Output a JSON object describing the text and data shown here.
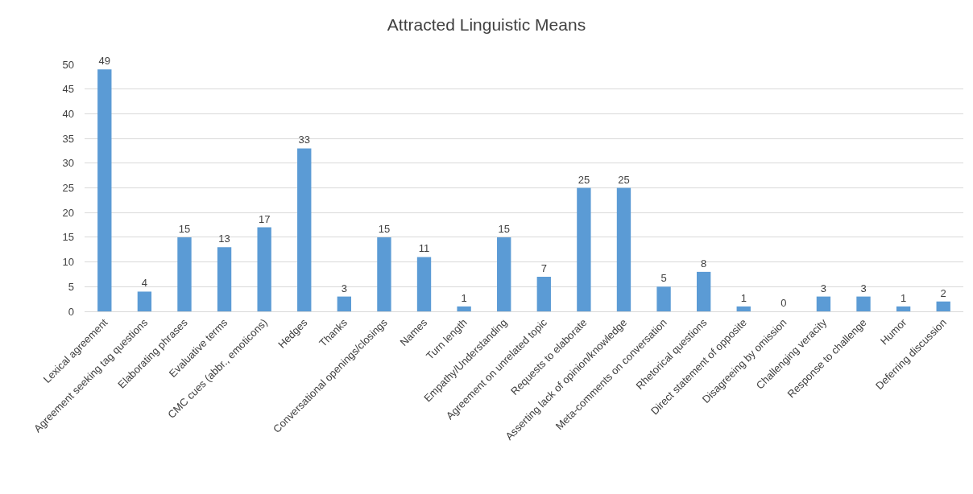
{
  "chart_data": {
    "type": "bar",
    "title": "Attracted Linguistic Means",
    "categories": [
      "Lexical agreement",
      "Agreement seeking tag questions",
      "Elaborating phrases",
      "Evaluative terms",
      "CMC cues (abbr., emoticons)",
      "Hedges",
      "Thanks",
      "Conversational openings/closings",
      "Names",
      "Turn length",
      "Empathy/Understanding",
      "Agreement on unrelated topic",
      "Requests to elaborate",
      "Asserting lack of opinion/knowledge",
      "Meta-comments on conversation",
      "Rhetorical questions",
      "Direct statement of opposite",
      "Disagreeing by omission",
      "Challenging veracity",
      "Response to challenge",
      "Humor",
      "Deferring discussion"
    ],
    "values": [
      49,
      4,
      15,
      13,
      17,
      33,
      3,
      15,
      11,
      1,
      15,
      7,
      25,
      25,
      5,
      8,
      1,
      0,
      3,
      3,
      1,
      2
    ],
    "color": "#5b9bd5",
    "ylim": [
      0,
      50
    ],
    "yticks": [
      0,
      5,
      10,
      15,
      20,
      25,
      30,
      35,
      40,
      45,
      50
    ],
    "grid": "y",
    "data_labels": true,
    "legend": false
  }
}
